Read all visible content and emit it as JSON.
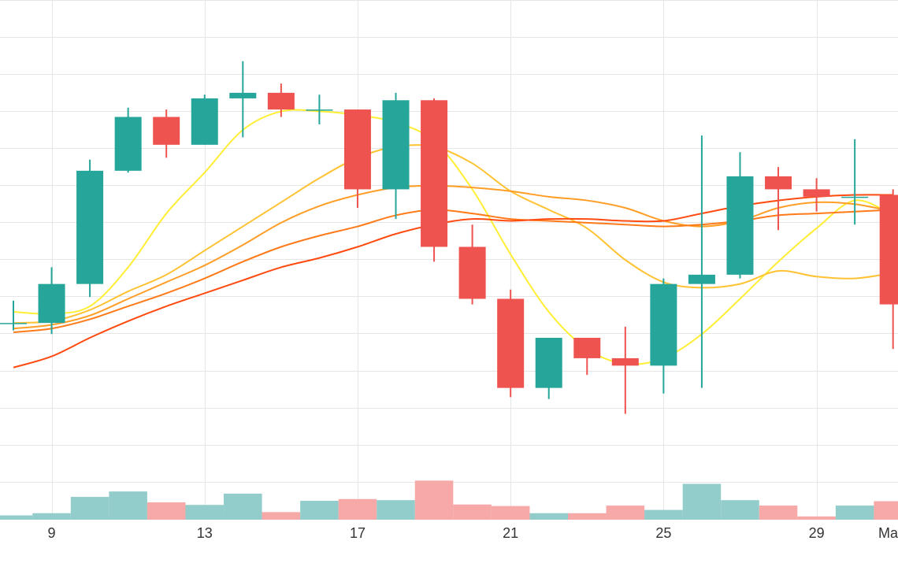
{
  "chart_data": {
    "type": "candlestick",
    "title": "",
    "xlabel": "",
    "ylabel": "",
    "x_tick_labels": [
      {
        "day": 9,
        "label": "9"
      },
      {
        "day": 13,
        "label": "13"
      },
      {
        "day": 17,
        "label": "17"
      },
      {
        "day": 21,
        "label": "21"
      },
      {
        "day": 25,
        "label": "25"
      },
      {
        "day": 29,
        "label": "29"
      },
      {
        "day": 32,
        "label": "Ma"
      }
    ],
    "xlim": [
      7.65,
      31.13
    ],
    "ylim": [
      0,
      14
    ],
    "grid": true,
    "candles": [
      {
        "day": 8,
        "open": 5.3,
        "high": 5.9,
        "low": 5.1,
        "close": 5.3
      },
      {
        "day": 9,
        "open": 5.3,
        "high": 6.8,
        "low": 5.0,
        "close": 6.35
      },
      {
        "day": 10,
        "open": 6.35,
        "high": 9.7,
        "low": 6.0,
        "close": 9.4
      },
      {
        "day": 11,
        "open": 9.4,
        "high": 11.1,
        "low": 9.35,
        "close": 10.85
      },
      {
        "day": 12,
        "open": 10.85,
        "high": 11.05,
        "low": 9.75,
        "close": 10.1
      },
      {
        "day": 13,
        "open": 10.1,
        "high": 11.45,
        "low": 10.1,
        "close": 11.35
      },
      {
        "day": 14,
        "open": 11.35,
        "high": 12.35,
        "low": 10.3,
        "close": 11.5
      },
      {
        "day": 15,
        "open": 11.5,
        "high": 11.75,
        "low": 10.85,
        "close": 11.05
      },
      {
        "day": 16,
        "open": 11.05,
        "high": 11.45,
        "low": 10.65,
        "close": 11.05
      },
      {
        "day": 17,
        "open": 11.05,
        "high": 11.05,
        "low": 8.4,
        "close": 8.9
      },
      {
        "day": 18,
        "open": 8.9,
        "high": 11.5,
        "low": 8.1,
        "close": 11.3
      },
      {
        "day": 19,
        "open": 11.3,
        "high": 11.35,
        "low": 6.95,
        "close": 7.35
      },
      {
        "day": 20,
        "open": 7.35,
        "high": 7.95,
        "low": 5.8,
        "close": 5.95
      },
      {
        "day": 21,
        "open": 5.95,
        "high": 6.2,
        "low": 3.3,
        "close": 3.55
      },
      {
        "day": 22,
        "open": 3.55,
        "high": 4.9,
        "low": 3.25,
        "close": 4.9
      },
      {
        "day": 23,
        "open": 4.9,
        "high": 4.9,
        "low": 3.9,
        "close": 4.35
      },
      {
        "day": 24,
        "open": 4.35,
        "high": 5.2,
        "low": 2.85,
        "close": 4.15
      },
      {
        "day": 25,
        "open": 4.15,
        "high": 6.5,
        "low": 3.4,
        "close": 6.35
      },
      {
        "day": 26,
        "open": 6.35,
        "high": 10.35,
        "low": 3.55,
        "close": 6.6
      },
      {
        "day": 27,
        "open": 6.6,
        "high": 9.9,
        "low": 6.5,
        "close": 9.25
      },
      {
        "day": 28,
        "open": 9.25,
        "high": 9.5,
        "low": 7.8,
        "close": 8.9
      },
      {
        "day": 29,
        "open": 8.9,
        "high": 9.2,
        "low": 8.3,
        "close": 8.7
      },
      {
        "day": 30,
        "open": 8.7,
        "high": 10.25,
        "low": 7.95,
        "close": 8.7
      },
      {
        "day": 31,
        "open": 8.75,
        "high": 8.9,
        "low": 4.6,
        "close": 5.8
      }
    ],
    "volumes": [
      0.2,
      0.3,
      1.05,
      1.3,
      0.8,
      0.68,
      1.2,
      0.35,
      0.87,
      0.95,
      0.9,
      1.8,
      0.7,
      0.63,
      0.3,
      0.3,
      0.65,
      0.45,
      1.65,
      0.9,
      0.65,
      0.15,
      0.65,
      0.85
    ],
    "volume_ylim": [
      0,
      3.1
    ],
    "moving_averages": [
      {
        "color": "#ffee33",
        "values": [
          5.6,
          5.55,
          5.75,
          6.8,
          8.25,
          9.35,
          10.5,
          11.0,
          11.0,
          10.9,
          10.7,
          10.2,
          8.9,
          7.15,
          5.6,
          4.6,
          4.2,
          4.35,
          5.0,
          5.95,
          6.95,
          7.85,
          8.6,
          8.2
        ]
      },
      {
        "color": "#ffc233",
        "values": [
          5.3,
          5.35,
          5.65,
          6.15,
          6.6,
          7.25,
          7.9,
          8.55,
          9.2,
          9.75,
          10.05,
          10.05,
          9.6,
          8.85,
          8.35,
          7.85,
          7.0,
          6.4,
          6.25,
          6.35,
          6.7,
          6.55,
          6.5,
          6.65
        ]
      },
      {
        "color": "#ff9e26",
        "values": [
          5.15,
          5.25,
          5.5,
          5.95,
          6.4,
          6.85,
          7.4,
          8.0,
          8.45,
          8.75,
          8.95,
          9.0,
          8.95,
          8.85,
          8.7,
          8.6,
          8.4,
          8.05,
          7.9,
          8.05,
          8.4,
          8.55,
          8.5,
          8.3
        ]
      },
      {
        "color": "#ff7a19",
        "values": [
          5.05,
          5.15,
          5.4,
          5.75,
          6.1,
          6.5,
          6.95,
          7.35,
          7.65,
          7.9,
          8.2,
          8.35,
          8.25,
          8.1,
          8.05,
          8.0,
          7.95,
          7.9,
          7.95,
          8.05,
          8.2,
          8.25,
          8.3,
          8.35
        ]
      },
      {
        "color": "#ff4a10",
        "values": [
          4.1,
          4.4,
          4.9,
          5.35,
          5.75,
          6.1,
          6.45,
          6.8,
          7.05,
          7.35,
          7.7,
          7.95,
          8.1,
          8.05,
          8.1,
          8.1,
          8.05,
          8.05,
          8.25,
          8.45,
          8.6,
          8.7,
          8.75,
          8.75
        ]
      }
    ],
    "colors": {
      "up": "#26a69a",
      "down": "#ef5350",
      "volume_up": "#92cdcc",
      "volume_down": "#f6a9a7",
      "grid": "#e6e6e6",
      "background": "#ffffff"
    }
  }
}
